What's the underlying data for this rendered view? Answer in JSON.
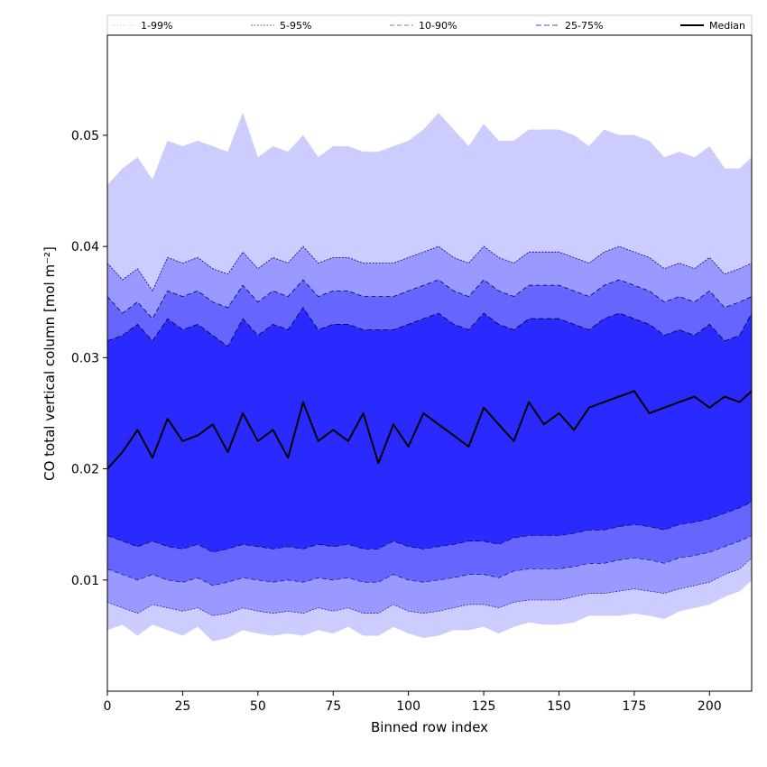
{
  "chart_data": {
    "type": "area",
    "xlabel": "Binned row index",
    "ylabel": "CO total vertical column [mol m⁻²]",
    "xlim": [
      0,
      214
    ],
    "ylim": [
      0.0,
      0.059
    ],
    "x_ticks": [
      "0",
      "25",
      "50",
      "75",
      "100",
      "125",
      "150",
      "175",
      "200"
    ],
    "x_tick_values": [
      0,
      25,
      50,
      75,
      100,
      125,
      150,
      175,
      200
    ],
    "y_ticks": [
      "0.01",
      "0.02",
      "0.03",
      "0.04",
      "0.05"
    ],
    "y_tick_values": [
      0.01,
      0.02,
      0.03,
      0.04,
      0.05
    ],
    "legend_placement": "top, horizontal above plot",
    "x": [
      0,
      5,
      10,
      15,
      20,
      25,
      30,
      35,
      40,
      45,
      50,
      55,
      60,
      65,
      70,
      75,
      80,
      85,
      90,
      95,
      100,
      105,
      110,
      115,
      120,
      125,
      130,
      135,
      140,
      145,
      150,
      155,
      160,
      165,
      170,
      175,
      180,
      185,
      190,
      195,
      200,
      205,
      210,
      214
    ],
    "series": [
      {
        "name": "1-99%",
        "color": "#ccccff",
        "line_color": "#c8c8c8",
        "low": [
          0.0055,
          0.006,
          0.005,
          0.006,
          0.0055,
          0.005,
          0.0058,
          0.0045,
          0.0048,
          0.0055,
          0.0052,
          0.005,
          0.0052,
          0.005,
          0.0055,
          0.0052,
          0.0058,
          0.005,
          0.005,
          0.0058,
          0.0052,
          0.0048,
          0.005,
          0.0055,
          0.0055,
          0.0058,
          0.0052,
          0.0058,
          0.0062,
          0.006,
          0.006,
          0.0062,
          0.0068,
          0.0068,
          0.0068,
          0.007,
          0.0068,
          0.0065,
          0.0072,
          0.0075,
          0.0078,
          0.0085,
          0.009,
          0.01
        ],
        "high": [
          0.0455,
          0.047,
          0.048,
          0.046,
          0.0495,
          0.049,
          0.0495,
          0.049,
          0.0485,
          0.052,
          0.048,
          0.049,
          0.0485,
          0.05,
          0.048,
          0.049,
          0.049,
          0.0485,
          0.0485,
          0.049,
          0.0495,
          0.0505,
          0.052,
          0.0505,
          0.049,
          0.051,
          0.0495,
          0.0495,
          0.0505,
          0.0505,
          0.0505,
          0.05,
          0.049,
          0.0505,
          0.05,
          0.05,
          0.0495,
          0.048,
          0.0485,
          0.048,
          0.049,
          0.047,
          0.047,
          0.048
        ]
      },
      {
        "name": "5-95%",
        "color": "#9999ff",
        "line_color": "#00008b",
        "low": [
          0.008,
          0.0075,
          0.007,
          0.0078,
          0.0075,
          0.0072,
          0.0075,
          0.0068,
          0.007,
          0.0075,
          0.0072,
          0.007,
          0.0072,
          0.007,
          0.0075,
          0.0072,
          0.0075,
          0.007,
          0.007,
          0.0078,
          0.0072,
          0.007,
          0.0072,
          0.0075,
          0.0078,
          0.0078,
          0.0075,
          0.008,
          0.0082,
          0.0082,
          0.0082,
          0.0085,
          0.0088,
          0.0088,
          0.009,
          0.0092,
          0.009,
          0.0088,
          0.0092,
          0.0095,
          0.0098,
          0.0105,
          0.011,
          0.012
        ],
        "high": [
          0.0385,
          0.037,
          0.038,
          0.036,
          0.039,
          0.0385,
          0.039,
          0.038,
          0.0375,
          0.0395,
          0.038,
          0.039,
          0.0385,
          0.04,
          0.0385,
          0.039,
          0.039,
          0.0385,
          0.0385,
          0.0385,
          0.039,
          0.0395,
          0.04,
          0.039,
          0.0385,
          0.04,
          0.039,
          0.0385,
          0.0395,
          0.0395,
          0.0395,
          0.039,
          0.0385,
          0.0395,
          0.04,
          0.0395,
          0.039,
          0.038,
          0.0385,
          0.038,
          0.039,
          0.0375,
          0.038,
          0.0385
        ]
      },
      {
        "name": "10-90%",
        "color": "#6666ff",
        "line_color": "#000066",
        "low": [
          0.011,
          0.0105,
          0.01,
          0.0105,
          0.01,
          0.0098,
          0.0102,
          0.0095,
          0.0098,
          0.0102,
          0.01,
          0.0098,
          0.01,
          0.0098,
          0.0102,
          0.01,
          0.0102,
          0.0098,
          0.0098,
          0.0105,
          0.01,
          0.0098,
          0.01,
          0.0102,
          0.0105,
          0.0105,
          0.0102,
          0.0108,
          0.011,
          0.011,
          0.011,
          0.0112,
          0.0115,
          0.0115,
          0.0118,
          0.012,
          0.0118,
          0.0115,
          0.012,
          0.0122,
          0.0125,
          0.013,
          0.0135,
          0.014
        ],
        "high": [
          0.0355,
          0.034,
          0.035,
          0.0335,
          0.036,
          0.0355,
          0.036,
          0.035,
          0.0345,
          0.0365,
          0.035,
          0.036,
          0.0355,
          0.037,
          0.0355,
          0.036,
          0.036,
          0.0355,
          0.0355,
          0.0355,
          0.036,
          0.0365,
          0.037,
          0.036,
          0.0355,
          0.037,
          0.036,
          0.0355,
          0.0365,
          0.0365,
          0.0365,
          0.036,
          0.0355,
          0.0365,
          0.037,
          0.0365,
          0.036,
          0.035,
          0.0355,
          0.035,
          0.036,
          0.0345,
          0.035,
          0.0355
        ]
      },
      {
        "name": "25-75%",
        "color": "#2a2aff",
        "line_color": "#000033",
        "low": [
          0.014,
          0.0135,
          0.013,
          0.0135,
          0.013,
          0.0128,
          0.0132,
          0.0125,
          0.0128,
          0.0132,
          0.013,
          0.0128,
          0.013,
          0.0128,
          0.0132,
          0.013,
          0.0132,
          0.0128,
          0.0128,
          0.0135,
          0.013,
          0.0128,
          0.013,
          0.0132,
          0.0135,
          0.0135,
          0.0132,
          0.0138,
          0.014,
          0.014,
          0.014,
          0.0142,
          0.0145,
          0.0145,
          0.0148,
          0.015,
          0.0148,
          0.0145,
          0.015,
          0.0152,
          0.0155,
          0.016,
          0.0165,
          0.017
        ],
        "high": [
          0.0315,
          0.032,
          0.033,
          0.0315,
          0.0335,
          0.0325,
          0.033,
          0.032,
          0.031,
          0.0335,
          0.032,
          0.033,
          0.0325,
          0.0345,
          0.0325,
          0.033,
          0.033,
          0.0325,
          0.0325,
          0.0325,
          0.033,
          0.0335,
          0.034,
          0.033,
          0.0325,
          0.034,
          0.033,
          0.0325,
          0.0335,
          0.0335,
          0.0335,
          0.033,
          0.0325,
          0.0335,
          0.034,
          0.0335,
          0.033,
          0.032,
          0.0325,
          0.032,
          0.033,
          0.0315,
          0.032,
          0.034
        ]
      },
      {
        "name": "Median",
        "color": "#000000",
        "values": [
          0.02,
          0.0215,
          0.0235,
          0.021,
          0.0245,
          0.0225,
          0.023,
          0.024,
          0.0215,
          0.025,
          0.0225,
          0.0235,
          0.021,
          0.026,
          0.0225,
          0.0235,
          0.0225,
          0.025,
          0.0205,
          0.024,
          0.022,
          0.025,
          0.024,
          0.023,
          0.022,
          0.0255,
          0.024,
          0.0225,
          0.026,
          0.024,
          0.025,
          0.0235,
          0.0255,
          0.026,
          0.0265,
          0.027,
          0.025,
          0.0255,
          0.026,
          0.0265,
          0.0255,
          0.0265,
          0.026,
          0.027
        ]
      }
    ]
  }
}
